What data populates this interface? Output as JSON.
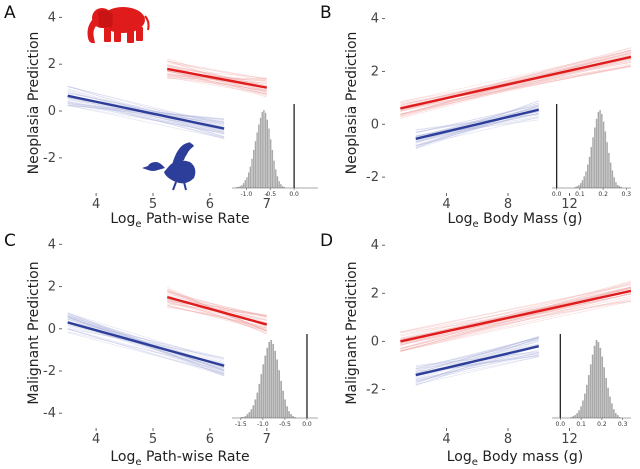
{
  "colors": {
    "large": "#e01b1b",
    "small": "#2d3e9a",
    "large_faint": "#f2a7a7",
    "small_faint": "#aeb5dc",
    "histogram": "#a9a9a9",
    "axis": "#222222"
  },
  "icons": {
    "large_mammal": "elephant-silhouette",
    "small_bird": "duck-silhouette"
  },
  "chart_data": [
    {
      "letter": "A",
      "type": "line",
      "xlabel": "Log",
      "xlabel_sub": "e",
      "xlabel_rest": " Path-wise Rate",
      "ylabel": "Neoplasia Prediction",
      "xlim": [
        3.4,
        7.9
      ],
      "ylim": [
        -3.5,
        4.4
      ],
      "xticks": [
        4,
        5,
        6,
        7
      ],
      "yticks": [
        -2,
        0,
        2,
        4
      ],
      "series": [
        {
          "group": "large",
          "x": [
            5.25,
            7.0
          ],
          "y": [
            1.8,
            1.0
          ]
        },
        {
          "group": "small",
          "x": [
            3.5,
            6.25
          ],
          "y": [
            0.65,
            -0.75
          ]
        }
      ],
      "inset": {
        "xlim": [
          -1.3,
          0.5
        ],
        "xticks": [
          -1.0,
          -0.5,
          0.0
        ],
        "xtick_labels": [
          "-1.0",
          "-0.5",
          "0.0"
        ],
        "vline": 0.0,
        "hist": [
          0,
          1,
          1,
          2,
          3,
          5,
          8,
          11,
          16,
          22,
          30,
          39,
          48,
          57,
          65,
          72,
          78,
          80,
          77,
          70,
          61,
          50,
          39,
          28,
          19,
          12,
          7,
          4,
          2,
          1,
          0
        ],
        "hist_range": [
          -1.25,
          -0.15
        ]
      }
    },
    {
      "letter": "B",
      "type": "line",
      "xlabel": "Log",
      "xlabel_sub": "e",
      "xlabel_rest": " Body Mass (g)",
      "ylabel": "Neoplasia Prediction",
      "xlim": [
        0.0,
        16.0
      ],
      "ylim": [
        -2.6,
        4.4
      ],
      "xticks": [
        4,
        8,
        12
      ],
      "yticks": [
        -2,
        0,
        2,
        4
      ],
      "series": [
        {
          "group": "large",
          "x": [
            1.0,
            16.0
          ],
          "y": [
            0.6,
            2.55
          ]
        },
        {
          "group": "small",
          "x": [
            2.0,
            10.0
          ],
          "y": [
            -0.55,
            0.55
          ]
        }
      ],
      "inset": {
        "xlim": [
          -0.02,
          0.32
        ],
        "xticks": [
          0.0,
          0.1,
          0.2,
          0.3
        ],
        "xtick_labels": [
          "0.0",
          "0.1",
          "0.2",
          "0.3"
        ],
        "vline": 0.0,
        "hist": [
          0,
          1,
          2,
          3,
          5,
          8,
          12,
          17,
          24,
          32,
          42,
          52,
          62,
          71,
          78,
          80,
          76,
          68,
          58,
          47,
          36,
          26,
          18,
          11,
          6,
          3,
          2,
          1,
          0
        ],
        "hist_range": [
          0.07,
          0.29
        ]
      }
    },
    {
      "letter": "C",
      "type": "line",
      "xlabel": "Log",
      "xlabel_sub": "e",
      "xlabel_rest": " Path-wise Rate",
      "ylabel": "Malignant Prediction",
      "xlim": [
        3.4,
        7.9
      ],
      "ylim": [
        -4.7,
        4.3
      ],
      "xticks": [
        4,
        5,
        6,
        7
      ],
      "yticks": [
        -4,
        -2,
        0,
        2,
        4
      ],
      "series": [
        {
          "group": "large",
          "x": [
            5.25,
            7.0
          ],
          "y": [
            1.5,
            0.2
          ]
        },
        {
          "group": "small",
          "x": [
            3.5,
            6.25
          ],
          "y": [
            0.3,
            -1.75
          ]
        }
      ],
      "inset": {
        "xlim": [
          -1.7,
          0.25
        ],
        "xticks": [
          -1.5,
          -1.0,
          -0.5,
          0.0
        ],
        "xtick_labels": [
          "-1.5",
          "-1.0",
          "-0.5",
          "0.0"
        ],
        "vline": 0.0,
        "hist": [
          0,
          1,
          1,
          2,
          4,
          6,
          9,
          13,
          19,
          26,
          35,
          45,
          55,
          64,
          72,
          78,
          80,
          76,
          69,
          60,
          49,
          38,
          28,
          19,
          12,
          7,
          4,
          2,
          1,
          0
        ],
        "hist_range": [
          -1.55,
          -0.2
        ]
      }
    },
    {
      "letter": "D",
      "type": "line",
      "xlabel": "Log",
      "xlabel_sub": "e",
      "xlabel_rest": " Body mass (g)",
      "ylabel": "Malignant Prediction",
      "xlim": [
        0.0,
        16.0
      ],
      "ylim": [
        -3.6,
        4.3
      ],
      "xticks": [
        4,
        8,
        12
      ],
      "yticks": [
        -2,
        0,
        2,
        4
      ],
      "series": [
        {
          "group": "large",
          "x": [
            1.0,
            16.0
          ],
          "y": [
            0.0,
            2.1
          ]
        },
        {
          "group": "small",
          "x": [
            2.0,
            10.0
          ],
          "y": [
            -1.4,
            -0.2
          ]
        }
      ],
      "inset": {
        "xlim": [
          -0.04,
          0.34
        ],
        "xticks": [
          0.0,
          0.1,
          0.2,
          0.3
        ],
        "xtick_labels": [
          "0.0",
          "0.1",
          "0.2",
          "0.3"
        ],
        "vline": 0.0,
        "hist": [
          0,
          1,
          2,
          3,
          5,
          8,
          12,
          18,
          25,
          34,
          44,
          55,
          65,
          74,
          80,
          78,
          72,
          63,
          52,
          41,
          31,
          22,
          15,
          9,
          5,
          3,
          1,
          0
        ],
        "hist_range": [
          0.04,
          0.3
        ]
      }
    }
  ]
}
